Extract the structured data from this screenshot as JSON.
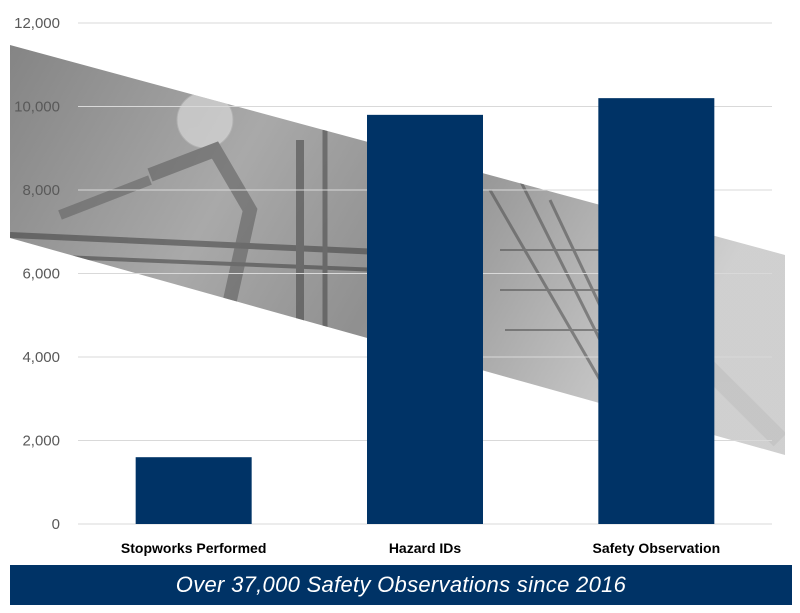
{
  "chart_data": {
    "type": "bar",
    "categories": [
      "Stopworks Performed",
      "Hazard IDs",
      "Safety Observation"
    ],
    "values": [
      1600,
      9800,
      10200
    ],
    "ylim": [
      0,
      12000
    ],
    "yticks": [
      0,
      2000,
      4000,
      6000,
      8000,
      10000,
      12000
    ],
    "ytick_labels": [
      "0",
      "2,000",
      "4,000",
      "6,000",
      "8,000",
      "10,000",
      "12,000"
    ],
    "grid": true,
    "legend": "none"
  },
  "footer": {
    "text": "Over 37,000 Safety Observations since 2016"
  },
  "colors": {
    "bar": "#003366",
    "banner": "#003366",
    "grid": "#d9d9d9",
    "axis_text": "#595959",
    "category_text": "#000000",
    "background_photo_band": "#8a8a8a"
  },
  "background": {
    "icon": "construction-workers-photo-band"
  }
}
